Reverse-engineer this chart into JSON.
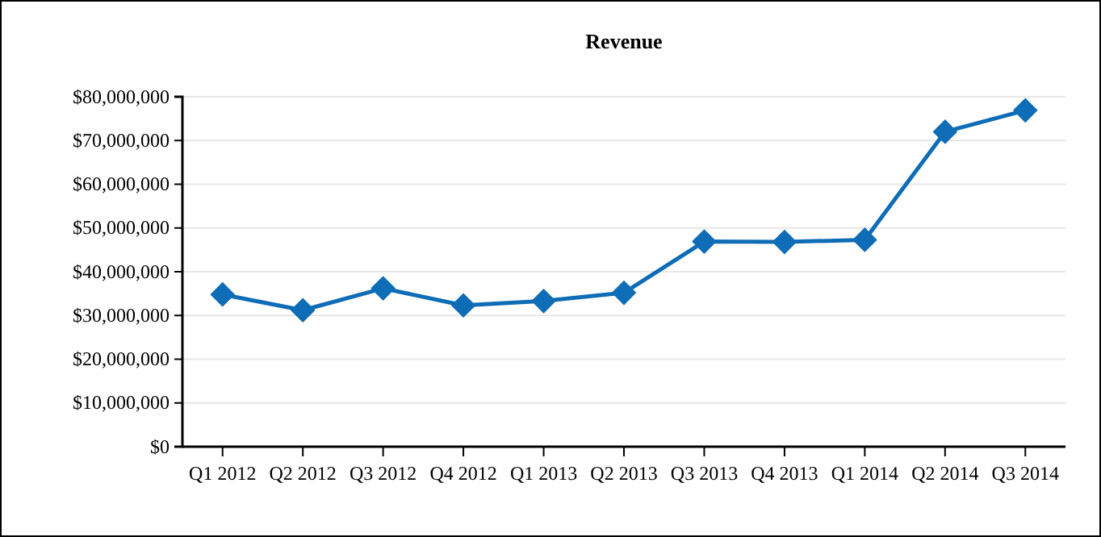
{
  "chart_data": {
    "type": "line",
    "title": "Revenue",
    "categories": [
      "Q1 2012",
      "Q2 2012",
      "Q3 2012",
      "Q4 2012",
      "Q1 2013",
      "Q2 2013",
      "Q3 2013",
      "Q4 2013",
      "Q1 2014",
      "Q2 2014",
      "Q3 2014"
    ],
    "series": [
      {
        "color": "#0f6cb6",
        "values": [
          34800000,
          31200000,
          36200000,
          32300000,
          33300000,
          35200000,
          46900000,
          46800000,
          47300000,
          72000000,
          76900000
        ]
      }
    ],
    "ylim": [
      0,
      80000000
    ],
    "yticks": [
      {
        "value": 0,
        "label": "$0"
      },
      {
        "value": 10000000,
        "label": "$10,000,000"
      },
      {
        "value": 20000000,
        "label": "$20,000,000"
      },
      {
        "value": 30000000,
        "label": "$30,000,000"
      },
      {
        "value": 40000000,
        "label": "$40,000,000"
      },
      {
        "value": 50000000,
        "label": "$50,000,000"
      },
      {
        "value": 60000000,
        "label": "$60,000,000"
      },
      {
        "value": 70000000,
        "label": "$70,000,000"
      },
      {
        "value": 80000000,
        "label": "$80,000,000"
      }
    ],
    "grid": "y",
    "marker": "diamond",
    "line_style": "solid"
  }
}
